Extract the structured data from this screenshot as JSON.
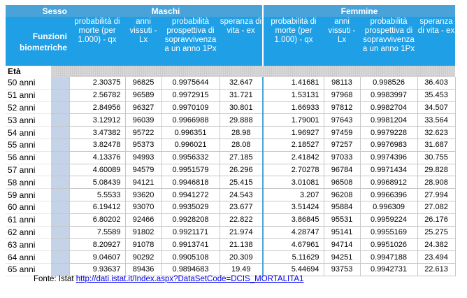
{
  "header": {
    "sesso": "Sesso",
    "maschi": "Maschi",
    "femmine": "Femmine",
    "funzioni_line1": "Funzioni",
    "funzioni_line2": "biometriche",
    "columns": [
      "probabilità di morte (per 1.000) - qx",
      "anni vissuti - Lx",
      "probabilità prospettiva di sopravvivenza a un anno 1Px",
      "speranza di vita - ex"
    ]
  },
  "eta_label": "Età",
  "rows": [
    {
      "age": "50 anni",
      "m": [
        "2.30375",
        "96825",
        "0.9975644",
        "32.647"
      ],
      "f": [
        "1.41681",
        "98113",
        "0.998526",
        "36.403"
      ]
    },
    {
      "age": "51 anni",
      "m": [
        "2.56782",
        "96589",
        "0.9972915",
        "31.721"
      ],
      "f": [
        "1.53131",
        "97968",
        "0.9983997",
        "35.453"
      ]
    },
    {
      "age": "52 anni",
      "m": [
        "2.84956",
        "96327",
        "0.9970109",
        "30.801"
      ],
      "f": [
        "1.66933",
        "97812",
        "0.9982704",
        "34.507"
      ]
    },
    {
      "age": "53 anni",
      "m": [
        "3.12912",
        "96039",
        "0.9966988",
        "29.888"
      ],
      "f": [
        "1.79001",
        "97643",
        "0.9981204",
        "33.564"
      ]
    },
    {
      "age": "54 anni",
      "m": [
        "3.47382",
        "95722",
        "0.996351",
        "28.98"
      ],
      "f": [
        "1.96927",
        "97459",
        "0.9979228",
        "32.623"
      ]
    },
    {
      "age": "55 anni",
      "m": [
        "3.82478",
        "95373",
        "0.996021",
        "28.08"
      ],
      "f": [
        "2.18527",
        "97257",
        "0.9976983",
        "31.687"
      ]
    },
    {
      "age": "56 anni",
      "m": [
        "4.13376",
        "94993",
        "0.9956332",
        "27.185"
      ],
      "f": [
        "2.41842",
        "97033",
        "0.9974396",
        "30.755"
      ]
    },
    {
      "age": "57 anni",
      "m": [
        "4.60089",
        "94579",
        "0.9951579",
        "26.296"
      ],
      "f": [
        "2.70278",
        "96784",
        "0.9971434",
        "29.828"
      ]
    },
    {
      "age": "58 anni",
      "m": [
        "5.08439",
        "94121",
        "0.9946818",
        "25.415"
      ],
      "f": [
        "3.01081",
        "96508",
        "0.9968912",
        "28.908"
      ]
    },
    {
      "age": "59 anni",
      "m": [
        "5.5533",
        "93620",
        "0.9941272",
        "24.543"
      ],
      "f": [
        "3.207",
        "96208",
        "0.9966396",
        "27.994"
      ]
    },
    {
      "age": "60 anni",
      "m": [
        "6.19412",
        "93070",
        "0.9935029",
        "23.677"
      ],
      "f": [
        "3.51424",
        "95884",
        "0.996309",
        "27.082"
      ]
    },
    {
      "age": "61 anni",
      "m": [
        "6.80202",
        "92466",
        "0.9928208",
        "22.822"
      ],
      "f": [
        "3.86845",
        "95531",
        "0.9959224",
        "26.176"
      ]
    },
    {
      "age": "62 anni",
      "m": [
        "7.5589",
        "91802",
        "0.9921171",
        "21.974"
      ],
      "f": [
        "4.28747",
        "95141",
        "0.9955169",
        "25.275"
      ]
    },
    {
      "age": "63 anni",
      "m": [
        "8.20927",
        "91078",
        "0.9913741",
        "21.138"
      ],
      "f": [
        "4.67961",
        "94714",
        "0.9951026",
        "24.382"
      ]
    },
    {
      "age": "64 anni",
      "m": [
        "9.04607",
        "90292",
        "0.9905108",
        "20.309"
      ],
      "f": [
        "5.11629",
        "94251",
        "0.9947188",
        "23.494"
      ]
    },
    {
      "age": "65 anni",
      "m": [
        "9.93637",
        "89436",
        "0.9894683",
        "19.49"
      ],
      "f": [
        "5.44694",
        "93753",
        "0.9942731",
        "22.613"
      ]
    }
  ],
  "source": {
    "label": "Fonte: Istat",
    "link_text": "http://dati.istat.it/Index.aspx?DataSetCode=DCIS_MORTALITA1"
  }
}
